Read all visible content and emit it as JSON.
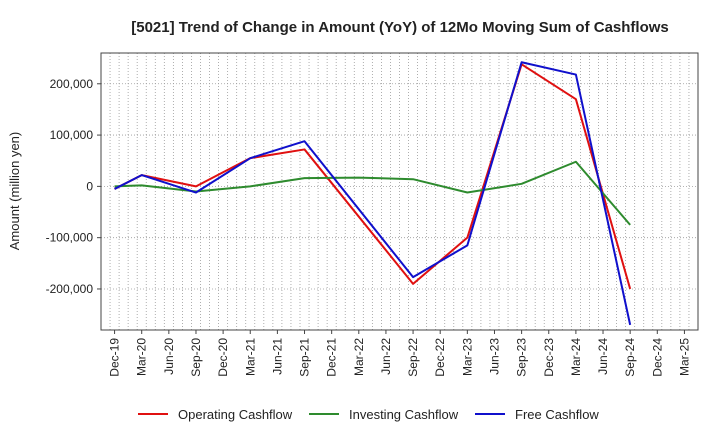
{
  "chart_data": {
    "type": "line",
    "title": "[5021]  Trend of Change in Amount (YoY) of 12Mo Moving Sum of Cashflows",
    "xlabel": "",
    "ylabel": "Amount (million yen)",
    "ylim": [
      -280000,
      260000
    ],
    "yticks": [
      200000,
      100000,
      0,
      -100000,
      -200000
    ],
    "ytick_labels": [
      "200,000",
      "100,000",
      "0",
      "-100,000",
      "-200,000"
    ],
    "categories": [
      "Dec-19",
      "Mar-20",
      "Jun-20",
      "Sep-20",
      "Dec-20",
      "Mar-21",
      "Jun-21",
      "Sep-21",
      "Dec-21",
      "Mar-22",
      "Jun-22",
      "Sep-22",
      "Dec-22",
      "Mar-23",
      "Jun-23",
      "Sep-23",
      "Dec-23",
      "Mar-24",
      "Jun-24",
      "Sep-24",
      "Dec-24",
      "Mar-25"
    ],
    "grid": true,
    "legend_position": "bottom",
    "series": [
      {
        "name": "Operating Cashflow",
        "color": "#e01010",
        "values": [
          -5000,
          22000,
          null,
          0,
          null,
          55000,
          null,
          72000,
          null,
          null,
          null,
          -190000,
          null,
          -100000,
          null,
          238000,
          null,
          170000,
          null,
          -200000,
          null,
          null
        ]
      },
      {
        "name": "Investing Cashflow",
        "color": "#2e8b2e",
        "values": [
          0,
          2000,
          null,
          -10000,
          null,
          0,
          null,
          16000,
          null,
          17000,
          null,
          14000,
          null,
          -12000,
          null,
          5000,
          null,
          48000,
          null,
          -75000,
          null,
          null
        ]
      },
      {
        "name": "Free Cashflow",
        "color": "#1010cc",
        "values": [
          -5000,
          22000,
          null,
          -12000,
          null,
          55000,
          null,
          88000,
          null,
          null,
          null,
          -177000,
          null,
          -115000,
          null,
          242000,
          null,
          218000,
          null,
          -270000,
          null,
          null
        ]
      }
    ]
  }
}
